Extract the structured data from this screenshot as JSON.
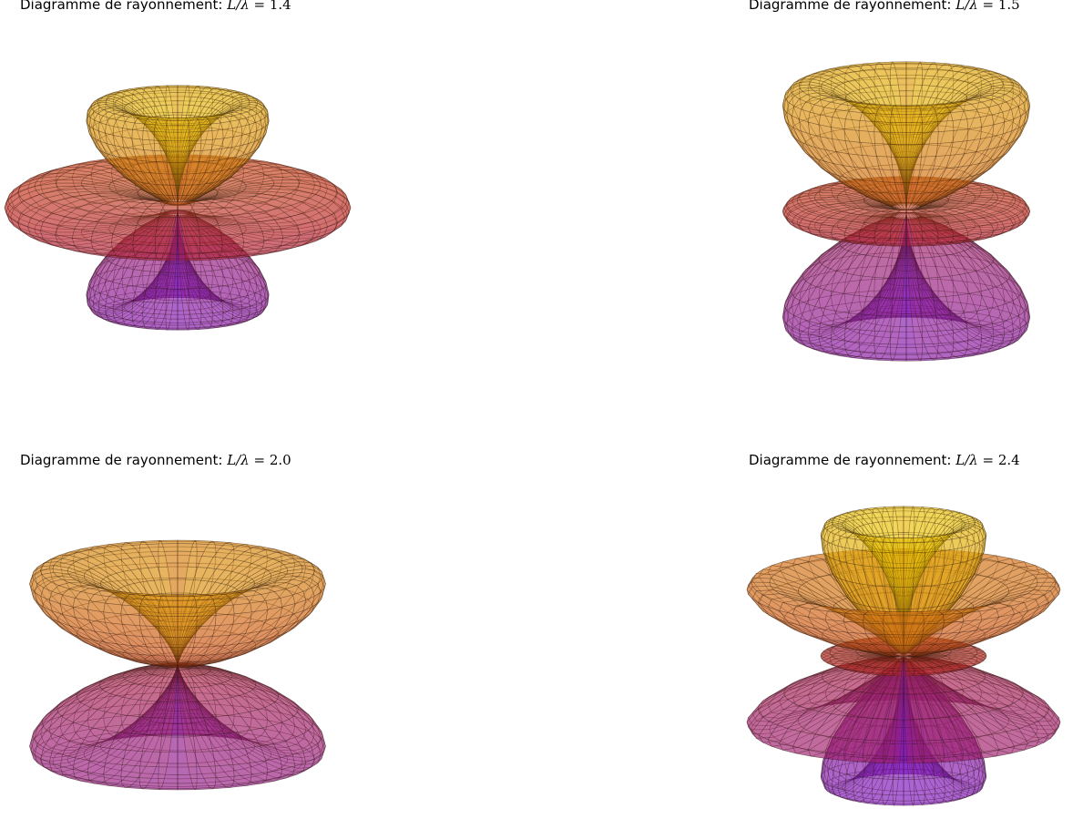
{
  "title_prefix": "Diagramme de rayonnement: ",
  "title_math_var": "L/λ",
  "title_math_eq": " = ",
  "colors": {
    "top_lobe": "#f2e600",
    "equator_lobe": "#c0281e",
    "bottom_lobe": "#6a10f0",
    "mesh_line": "#2a1a10"
  },
  "chart_data": [
    {
      "type": "surface-3d",
      "title": "Diagramme de rayonnement: L/λ = 1.4",
      "ratio_label": "1.4",
      "L_over_lambda": 1.4
    },
    {
      "type": "surface-3d",
      "title": "Diagramme de rayonnement: L/λ = 1.5",
      "ratio_label": "1.5",
      "L_over_lambda": 1.5
    },
    {
      "type": "surface-3d",
      "title": "Diagramme de rayonnement: L/λ = 2.0",
      "ratio_label": "2.0",
      "L_over_lambda": 2.0
    },
    {
      "type": "surface-3d",
      "title": "Diagramme de rayonnement: L/λ = 2.4",
      "ratio_label": "2.4",
      "L_over_lambda": 2.4
    }
  ]
}
